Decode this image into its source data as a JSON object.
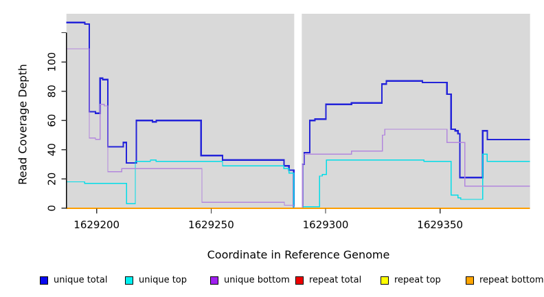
{
  "chart_data": {
    "type": "line",
    "subtype": "step-coverage-plot",
    "title": "",
    "xlabel": "Coordinate in Reference Genome",
    "ylabel": "Read Coverage Depth",
    "x_domain": [
      1629186.8,
      1629389.3
    ],
    "y_domain": [
      0,
      133
    ],
    "grid": false,
    "legend_position": "bottom",
    "plot_bg": "#d9d9d9",
    "axis_color": "#000000",
    "tick_color": "#333333",
    "coverage_gap": {
      "x_start": 1629286.3,
      "x_end": 1629289.6
    },
    "x_ticks": [
      {
        "v": 1629200,
        "label": "1629200"
      },
      {
        "v": 1629250,
        "label": "1629250"
      },
      {
        "v": 1629300,
        "label": "1629300"
      },
      {
        "v": 1629350,
        "label": "1629350"
      }
    ],
    "y_ticks": [
      {
        "v": 0,
        "label": "0"
      },
      {
        "v": 20,
        "label": "20"
      },
      {
        "v": 40,
        "label": "40"
      },
      {
        "v": 60,
        "label": "60"
      },
      {
        "v": 80,
        "label": "80"
      },
      {
        "v": 100,
        "label": "100"
      },
      {
        "v": 120,
        "label": ""
      }
    ],
    "series": [
      {
        "name": "unique total",
        "color": "#2323d9",
        "width": 2.3,
        "subpaths": [
          [
            [
              1629186.8,
              127
            ],
            [
              1629194.8,
              126
            ],
            [
              1629196.8,
              66
            ],
            [
              1629199.5,
              65
            ],
            [
              1629201.5,
              89
            ],
            [
              1629202.6,
              88
            ],
            [
              1629204.9,
              42
            ],
            [
              1629211.6,
              45
            ],
            [
              1629213.0,
              31
            ],
            [
              1629217.3,
              60
            ],
            [
              1629224.4,
              59
            ],
            [
              1629226.0,
              60
            ],
            [
              1629245.6,
              36
            ],
            [
              1629255.0,
              33
            ],
            [
              1629281.8,
              29
            ],
            [
              1629284.0,
              26
            ],
            [
              1629286.1,
              1
            ],
            [
              1629286.3,
              1
            ]
          ],
          [
            [
              1629289.6,
              1
            ],
            [
              1629289.9,
              30
            ],
            [
              1629290.7,
              38
            ],
            [
              1629293.1,
              60
            ],
            [
              1629295.3,
              61
            ],
            [
              1629300.1,
              71
            ],
            [
              1629311.3,
              72
            ],
            [
              1629324.6,
              85
            ],
            [
              1629326.5,
              87
            ],
            [
              1629342.3,
              86
            ],
            [
              1629353.0,
              78
            ],
            [
              1629354.8,
              54
            ],
            [
              1629356.6,
              53
            ],
            [
              1629357.8,
              51
            ],
            [
              1629358.6,
              21
            ],
            [
              1629368.6,
              53
            ],
            [
              1629370.6,
              47
            ],
            [
              1629389.3,
              47
            ]
          ]
        ]
      },
      {
        "name": "unique top",
        "color": "#00dde8",
        "width": 1.4,
        "subpaths": [
          [
            [
              1629186.8,
              18
            ],
            [
              1629194.8,
              17
            ],
            [
              1629213.1,
              3
            ],
            [
              1629216.9,
              32
            ],
            [
              1629223.5,
              33
            ],
            [
              1629226.0,
              32
            ],
            [
              1629255.0,
              29
            ],
            [
              1629281.8,
              27
            ],
            [
              1629284.0,
              24
            ],
            [
              1629286.1,
              1
            ],
            [
              1629286.3,
              1
            ]
          ],
          [
            [
              1629289.6,
              1
            ],
            [
              1629297.4,
              22
            ],
            [
              1629298.6,
              23
            ],
            [
              1629300.4,
              33
            ],
            [
              1629343.0,
              32
            ],
            [
              1629354.8,
              9
            ],
            [
              1629357.8,
              7
            ],
            [
              1629359.0,
              6
            ],
            [
              1629368.6,
              37
            ],
            [
              1629370.6,
              32
            ],
            [
              1629389.3,
              32
            ]
          ]
        ]
      },
      {
        "name": "unique bottom",
        "color": "#b286dd",
        "width": 1.4,
        "subpaths": [
          [
            [
              1629186.8,
              109
            ],
            [
              1629196.8,
              48
            ],
            [
              1629199.5,
              47
            ],
            [
              1629201.5,
              71
            ],
            [
              1629203.3,
              70
            ],
            [
              1629204.9,
              25
            ],
            [
              1629211.0,
              27
            ],
            [
              1629246.0,
              4
            ],
            [
              1629282.0,
              2
            ],
            [
              1629286.3,
              2
            ]
          ],
          [
            [
              1629289.6,
              0
            ],
            [
              1629289.9,
              30
            ],
            [
              1629290.7,
              37
            ],
            [
              1629311.3,
              39
            ],
            [
              1629324.8,
              50
            ],
            [
              1629325.9,
              54
            ],
            [
              1629353.0,
              45
            ],
            [
              1629360.8,
              15
            ],
            [
              1629389.3,
              15
            ]
          ]
        ]
      },
      {
        "name": "repeat total",
        "color": "#e00000",
        "width": 1.4,
        "subpaths": [
          [
            [
              1629186.8,
              0
            ],
            [
              1629389.3,
              0
            ]
          ]
        ]
      },
      {
        "name": "repeat top",
        "color": "#f0f000",
        "width": 1.4,
        "subpaths": [
          [
            [
              1629186.8,
              0
            ],
            [
              1629389.3,
              0
            ]
          ]
        ]
      },
      {
        "name": "repeat bottom",
        "color": "#ff9e00",
        "width": 2.0,
        "subpaths": [
          [
            [
              1629186.8,
              0
            ],
            [
              1629389.3,
              0
            ]
          ]
        ]
      }
    ],
    "legend": [
      {
        "label": "unique total",
        "color": "#0808f0"
      },
      {
        "label": "unique top",
        "color": "#00f0f0"
      },
      {
        "label": "unique bottom",
        "color": "#a020f0"
      },
      {
        "label": "repeat total",
        "color": "#ee0000"
      },
      {
        "label": "repeat top",
        "color": "#ffff00"
      },
      {
        "label": "repeat bottom",
        "color": "#ffa500"
      }
    ]
  }
}
